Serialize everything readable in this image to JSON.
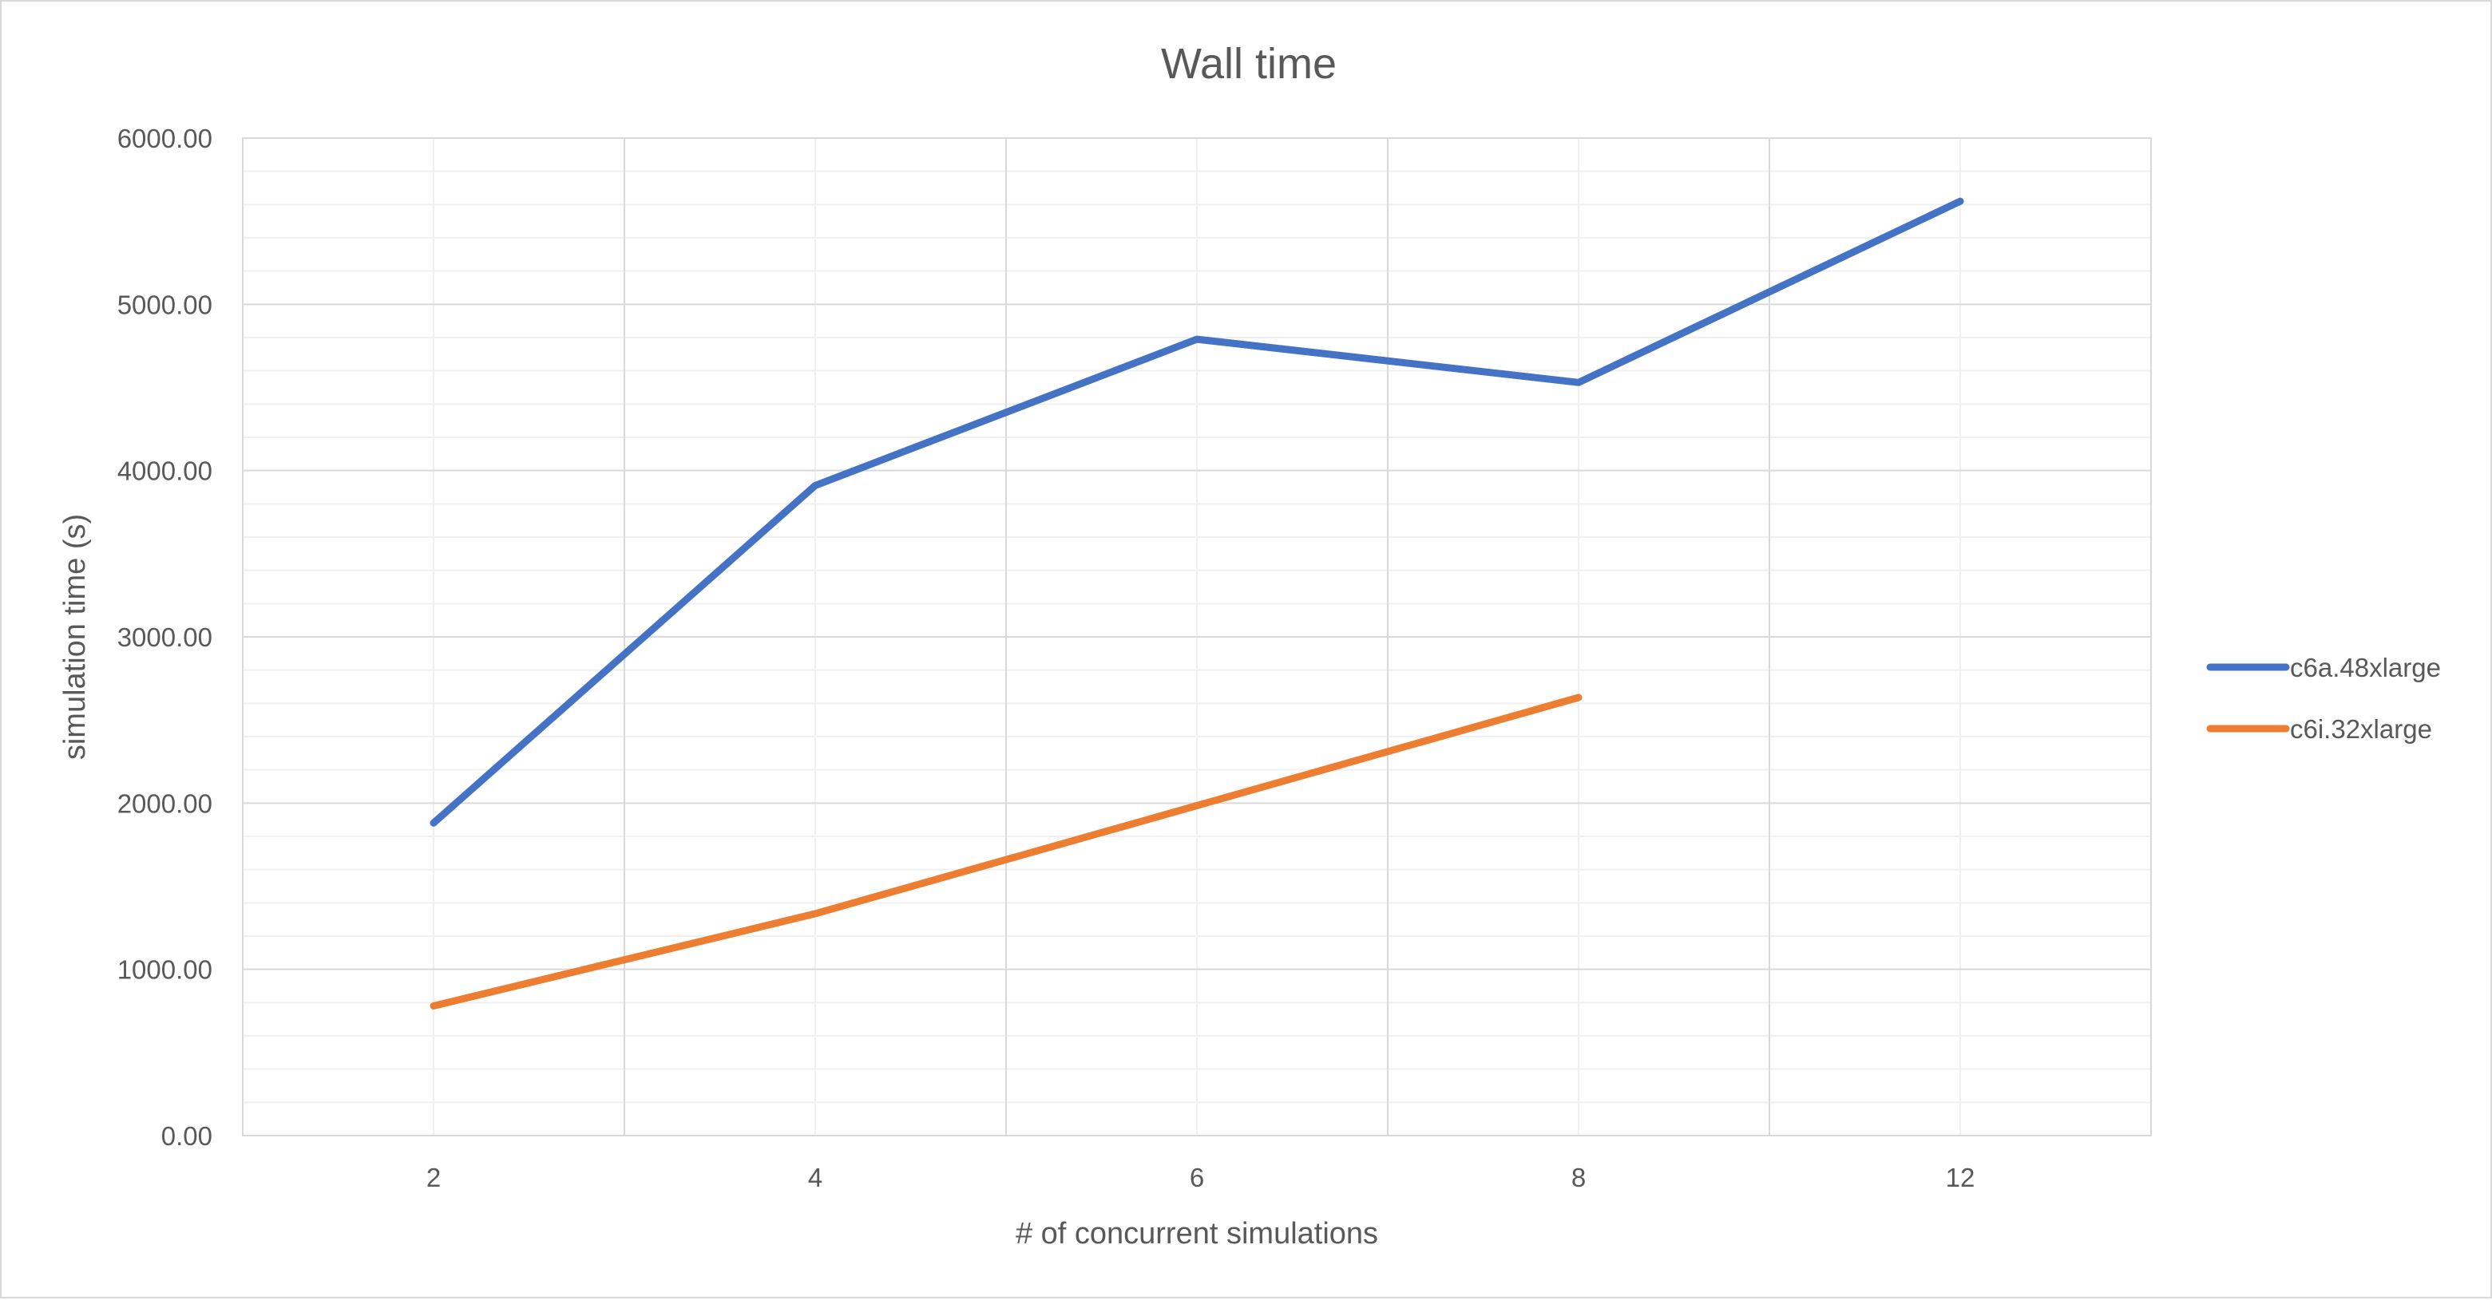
{
  "chart_data": {
    "type": "line",
    "title": "Wall time",
    "xlabel": "# of concurrent simulations",
    "ylabel": "simulation time (s)",
    "categories": [
      "2",
      "4",
      "6",
      "8",
      "12"
    ],
    "ylim": [
      0,
      6000
    ],
    "yticks": [
      "0.00",
      "1000.00",
      "2000.00",
      "3000.00",
      "4000.00",
      "5000.00",
      "6000.00"
    ],
    "grid": {
      "major": true,
      "minor": true
    },
    "legend_position": "right",
    "series": [
      {
        "name": "c6a.48xlarge",
        "color": "#4472c4",
        "values": [
          1880,
          3910,
          4790,
          4530,
          5620
        ]
      },
      {
        "name": "c6i.32xlarge",
        "color": "#ed7d31",
        "values": [
          780,
          1335,
          1985,
          2635,
          null
        ]
      }
    ]
  }
}
